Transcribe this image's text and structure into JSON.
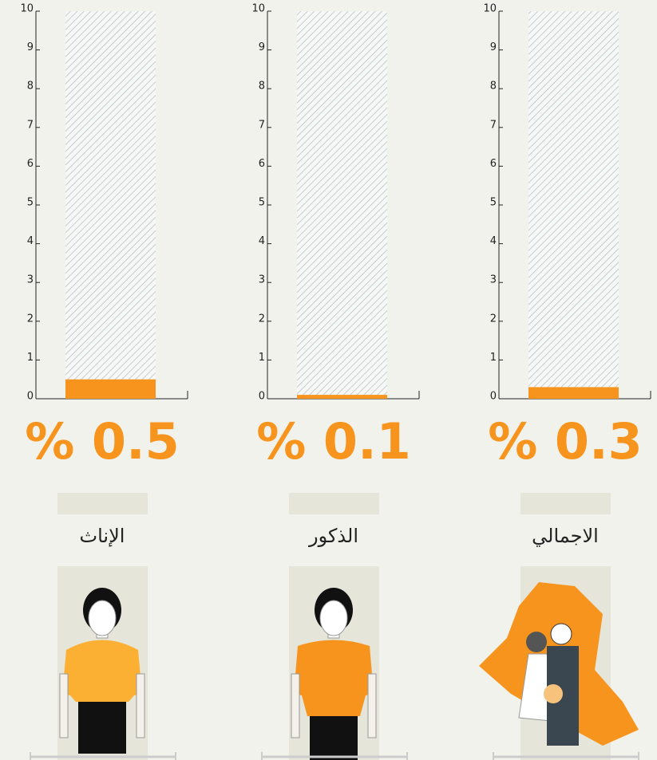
{
  "chart_data": [
    {
      "type": "bar",
      "categories": [
        "الإناث"
      ],
      "values": [
        0.5
      ],
      "value_labels": [
        "% 0.5"
      ],
      "color": "#f7941d",
      "ylim": [
        0,
        10
      ],
      "yticks": [
        0,
        1,
        2,
        3,
        4,
        5,
        6,
        7,
        8,
        9,
        10
      ]
    },
    {
      "type": "bar",
      "categories": [
        "الذكور"
      ],
      "values": [
        0.1
      ],
      "value_labels": [
        "% 0.1"
      ],
      "color": "#f7941d",
      "ylim": [
        0,
        10
      ],
      "yticks": [
        0,
        1,
        2,
        3,
        4,
        5,
        6,
        7,
        8,
        9,
        10
      ]
    },
    {
      "type": "bar",
      "categories": [
        "الاجمالي"
      ],
      "values": [
        0.3
      ],
      "value_labels": [
        "% 0.3"
      ],
      "color": "#f7941d",
      "ylim": [
        0,
        10
      ],
      "yticks": [
        0,
        1,
        2,
        3,
        4,
        5,
        6,
        7,
        8,
        9,
        10
      ]
    }
  ]
}
